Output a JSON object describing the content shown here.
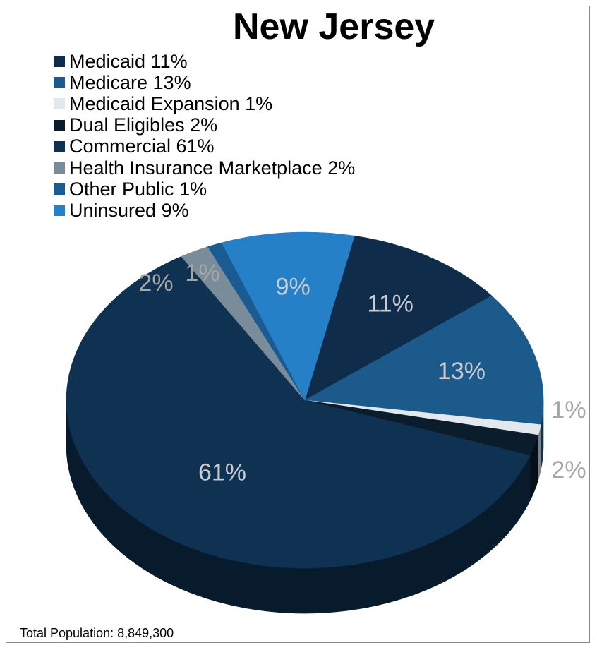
{
  "chart_data": {
    "type": "pie",
    "title": "New Jersey",
    "categories": [
      "Medicaid",
      "Medicare",
      "Medicaid Expansion",
      "Dual Eligibles",
      "Commercial",
      "Health Insurance Marketplace",
      "Other Public",
      "Uninsured"
    ],
    "values": [
      11,
      13,
      1,
      2,
      61,
      2,
      1,
      9
    ],
    "legend_labels": [
      "Medicaid 11%",
      "Medicare 13%",
      "Medicaid Expansion 1%",
      "Dual Eligibles 2%",
      "Commercial 61%",
      "Health Insurance Marketplace 2%",
      "Other Public 1%",
      "Uninsured 9%"
    ],
    "data_labels": [
      "11%",
      "13%",
      "1%",
      "2%",
      "61%",
      "2%",
      "1%",
      "9%"
    ],
    "colors": [
      "#0f2d4a",
      "#1d5a8c",
      "#e3e8ee",
      "#0b1c2c",
      "#0f3152",
      "#7a8b9a",
      "#1a5b92",
      "#2580c8"
    ],
    "legend_position": "top-left",
    "style": "3d"
  },
  "footer": {
    "text": "Total Population: 8,849,300"
  }
}
